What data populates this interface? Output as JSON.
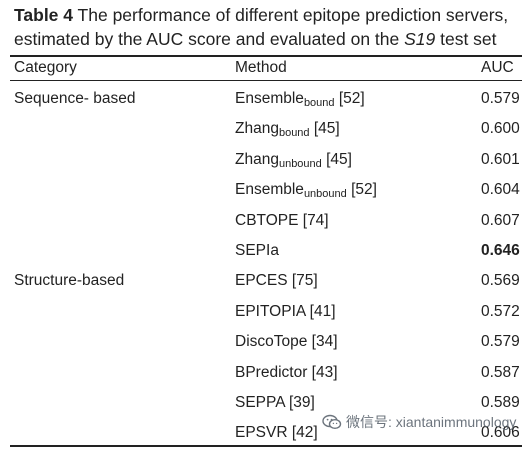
{
  "caption": {
    "label": "Table 4",
    "text_before_italic": " The performance of different epitope prediction servers, estimated by the AUC score and evaluated on the ",
    "italic": "S19",
    "text_after_italic": " test set"
  },
  "table": {
    "headers": {
      "category": "Category",
      "method": "Method",
      "auc": "AUC"
    },
    "rows": [
      {
        "category": "Sequence- based",
        "method": "Ensemble",
        "method_sub": "bound",
        "ref": " [52]",
        "auc": "0.579",
        "bold": false
      },
      {
        "category": "",
        "method": "Zhang",
        "method_sub": "bound",
        "ref": " [45]",
        "auc": "0.600",
        "bold": false
      },
      {
        "category": "",
        "method": "Zhang",
        "method_sub": "unbound",
        "ref": " [45]",
        "auc": "0.601",
        "bold": false
      },
      {
        "category": "",
        "method": "Ensemble",
        "method_sub": "unbound",
        "ref": " [52]",
        "auc": "0.604",
        "bold": false
      },
      {
        "category": "",
        "method": "CBTOPE [74]",
        "method_sub": "",
        "ref": "",
        "auc": "0.607",
        "bold": false
      },
      {
        "category": "",
        "method": "SEPIa",
        "method_sub": "",
        "ref": "",
        "auc": "0.646",
        "bold": true
      },
      {
        "category": "Structure-based",
        "method": "EPCES [75]",
        "method_sub": "",
        "ref": "",
        "auc": "0.569",
        "bold": false
      },
      {
        "category": "",
        "method": "EPITOPIA [41]",
        "method_sub": "",
        "ref": "",
        "auc": "0.572",
        "bold": false
      },
      {
        "category": "",
        "method": "DiscoTope [34]",
        "method_sub": "",
        "ref": "",
        "auc": "0.579",
        "bold": false
      },
      {
        "category": "",
        "method": "BPredictor [43]",
        "method_sub": "",
        "ref": "",
        "auc": "0.587",
        "bold": false
      },
      {
        "category": "",
        "method": "SEPPA [39]",
        "method_sub": "",
        "ref": "",
        "auc": "0.589",
        "bold": false
      },
      {
        "category": "",
        "method": "EPSVR [42]",
        "method_sub": "",
        "ref": "",
        "auc": "0.606",
        "bold": false
      }
    ]
  },
  "watermark": {
    "icon": "wechat-icon",
    "text": "微信号: xiantanimmunology"
  }
}
